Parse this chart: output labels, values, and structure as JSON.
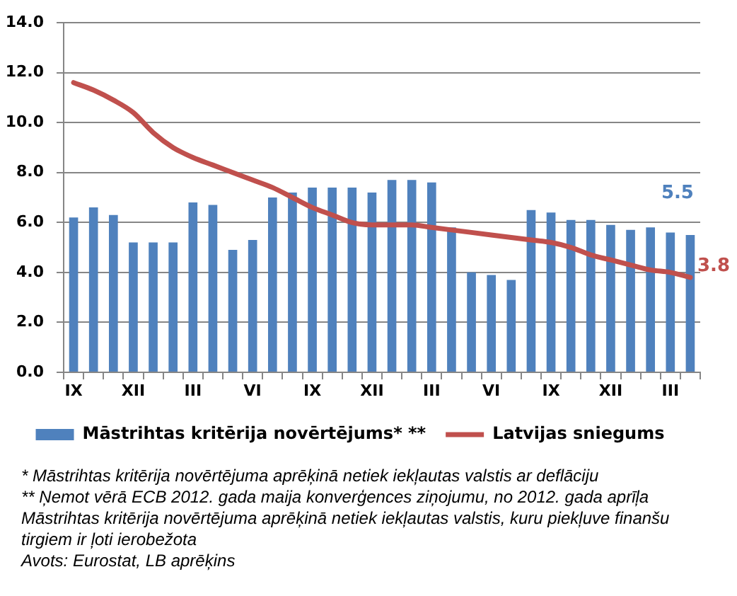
{
  "chart_data": {
    "type": "bar",
    "categories": [
      "IX",
      null,
      null,
      "XII",
      null,
      null,
      "III",
      null,
      null,
      "VI",
      null,
      null,
      "IX",
      null,
      null,
      "XII",
      null,
      null,
      "III",
      null,
      null,
      "VI",
      null,
      null,
      "IX",
      null,
      null,
      "XII",
      null,
      null,
      "III",
      null
    ],
    "series": [
      {
        "name": "Māstrihtas kritērija novērtējums* **",
        "color": "#4f81bd",
        "values": [
          6.2,
          6.6,
          6.3,
          5.2,
          5.2,
          5.2,
          6.8,
          6.7,
          4.9,
          5.3,
          7.0,
          7.2,
          7.4,
          7.4,
          7.4,
          7.2,
          7.7,
          7.7,
          7.6,
          5.8,
          4.0,
          3.9,
          3.7,
          6.5,
          6.4,
          6.1,
          6.1,
          5.9,
          5.7,
          5.8,
          5.6,
          5.5
        ],
        "value_labels": [
          null,
          null,
          null,
          null,
          null,
          null,
          null,
          null,
          null,
          null,
          null,
          null,
          null,
          null,
          null,
          null,
          null,
          null,
          null,
          null,
          null,
          null,
          null,
          null,
          null,
          null,
          null,
          null,
          null,
          null,
          null,
          "5.5"
        ]
      },
      {
        "name": "Latvijas sniegums",
        "type": "line",
        "color": "#c0504d",
        "values": [
          11.6,
          11.3,
          10.9,
          10.4,
          9.6,
          9.0,
          8.6,
          8.3,
          8.0,
          7.7,
          7.4,
          7.0,
          6.6,
          6.3,
          6.0,
          5.9,
          5.9,
          5.9,
          5.8,
          5.7,
          5.6,
          5.5,
          5.4,
          5.3,
          5.2,
          5.0,
          4.7,
          4.5,
          4.3,
          4.1,
          4.0,
          3.8
        ],
        "value_labels": [
          null,
          null,
          null,
          null,
          null,
          null,
          null,
          null,
          null,
          null,
          null,
          null,
          null,
          null,
          null,
          null,
          null,
          null,
          null,
          null,
          null,
          null,
          null,
          null,
          null,
          null,
          null,
          null,
          null,
          null,
          null,
          "3.8"
        ]
      }
    ],
    "ylim": [
      0,
      14
    ],
    "yticks": [
      {
        "value": 0,
        "label": "0.0"
      },
      {
        "value": 2,
        "label": "2.0"
      },
      {
        "value": 4,
        "label": "4.0"
      },
      {
        "value": 6,
        "label": "6.0"
      },
      {
        "value": 8,
        "label": "8.0"
      },
      {
        "value": 10,
        "label": "10.0"
      },
      {
        "value": 12,
        "label": "12.0"
      },
      {
        "value": 14,
        "label": "14.0"
      }
    ],
    "grid": "y",
    "legend": "bottom",
    "marker": "none",
    "annotations": [
      "* Māstrihtas kritērija novērtējuma aprēķinā netiek iekļautas valstis ar deflāciju",
      "** Ņemot vērā ECB 2012. gada maija konverģences ziņojumu, no 2012. gada aprīļa Māstrihtas kritērija novērtējuma aprēķinā netiek iekļautas valstis, kuru piekļuve finanšu tirgiem ir ļoti ierobežota",
      "Avots: Eurostat, LB aprēķins"
    ]
  }
}
